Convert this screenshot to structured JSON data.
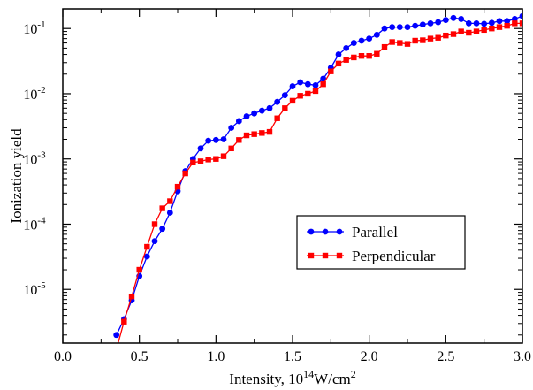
{
  "chart_data": {
    "type": "line",
    "xlabel": {
      "prefix": "Intensity, 10",
      "exp": "14",
      "mid": "W/cm",
      "exp2": "2"
    },
    "ylabel": "Ionization yield",
    "xlim": [
      0.0,
      3.0
    ],
    "ylim": [
      1.5e-06,
      0.2
    ],
    "yscale": "log",
    "xticks": [
      0.0,
      0.5,
      1.0,
      1.5,
      2.0,
      2.5,
      3.0
    ],
    "xtick_labels": [
      "0.0",
      "0.5",
      "1.0",
      "1.5",
      "2.0",
      "2.5",
      "3.0"
    ],
    "yticks": [
      {
        "value": 0.1,
        "base": "10",
        "exp": "-1"
      },
      {
        "value": 0.01,
        "base": "10",
        "exp": "-2"
      },
      {
        "value": 0.001,
        "base": "10",
        "exp": "-3"
      },
      {
        "value": 0.0001,
        "base": "10",
        "exp": "-4"
      },
      {
        "value": 1e-05,
        "base": "10",
        "exp": "-5"
      }
    ],
    "legend_position": "center-right",
    "series": [
      {
        "name": "Parallel",
        "color": "#0000ff",
        "marker": "circle",
        "x": [
          0.35,
          0.4,
          0.45,
          0.5,
          0.55,
          0.6,
          0.65,
          0.7,
          0.75,
          0.8,
          0.85,
          0.9,
          0.95,
          1.0,
          1.05,
          1.1,
          1.15,
          1.2,
          1.25,
          1.3,
          1.35,
          1.4,
          1.45,
          1.5,
          1.55,
          1.6,
          1.65,
          1.7,
          1.75,
          1.8,
          1.85,
          1.9,
          1.95,
          2.0,
          2.05,
          2.1,
          2.15,
          2.2,
          2.25,
          2.3,
          2.35,
          2.4,
          2.45,
          2.5,
          2.55,
          2.6,
          2.65,
          2.7,
          2.75,
          2.8,
          2.85,
          2.9,
          2.95,
          3.0
        ],
        "y": [
          2e-06,
          3.5e-06,
          6.8e-06,
          1.6e-05,
          3.2e-05,
          5.5e-05,
          8.5e-05,
          0.00015,
          0.00032,
          0.00065,
          0.001,
          0.00145,
          0.0019,
          0.00195,
          0.002,
          0.003,
          0.0038,
          0.0045,
          0.005,
          0.0055,
          0.006,
          0.0075,
          0.0095,
          0.013,
          0.015,
          0.014,
          0.0135,
          0.017,
          0.025,
          0.04,
          0.05,
          0.06,
          0.065,
          0.07,
          0.08,
          0.1,
          0.105,
          0.105,
          0.105,
          0.11,
          0.115,
          0.12,
          0.125,
          0.135,
          0.145,
          0.14,
          0.12,
          0.12,
          0.118,
          0.122,
          0.13,
          0.13,
          0.14,
          0.155
        ]
      },
      {
        "name": "Perpendicular",
        "color": "#ff0000",
        "marker": "square",
        "x": [
          0.35,
          0.4,
          0.45,
          0.5,
          0.55,
          0.6,
          0.65,
          0.7,
          0.75,
          0.8,
          0.85,
          0.9,
          0.95,
          1.0,
          1.05,
          1.1,
          1.15,
          1.2,
          1.25,
          1.3,
          1.35,
          1.4,
          1.45,
          1.5,
          1.55,
          1.6,
          1.65,
          1.7,
          1.75,
          1.8,
          1.85,
          1.9,
          1.95,
          2.0,
          2.05,
          2.1,
          2.15,
          2.2,
          2.25,
          2.3,
          2.35,
          2.4,
          2.45,
          2.5,
          2.55,
          2.6,
          2.65,
          2.7,
          2.75,
          2.8,
          2.85,
          2.9,
          2.95,
          3.0
        ],
        "y": [
          1.2e-06,
          3.2e-06,
          7.8e-06,
          2e-05,
          4.5e-05,
          0.0001,
          0.000175,
          0.000225,
          0.000375,
          0.0006,
          0.00088,
          0.00092,
          0.00098,
          0.001,
          0.0011,
          0.00145,
          0.00195,
          0.0023,
          0.0024,
          0.0025,
          0.0026,
          0.0042,
          0.006,
          0.0078,
          0.0093,
          0.01,
          0.011,
          0.014,
          0.022,
          0.029,
          0.033,
          0.036,
          0.038,
          0.038,
          0.041,
          0.052,
          0.062,
          0.06,
          0.058,
          0.065,
          0.066,
          0.07,
          0.072,
          0.078,
          0.082,
          0.09,
          0.086,
          0.09,
          0.095,
          0.1,
          0.105,
          0.11,
          0.12,
          0.12
        ]
      }
    ]
  }
}
